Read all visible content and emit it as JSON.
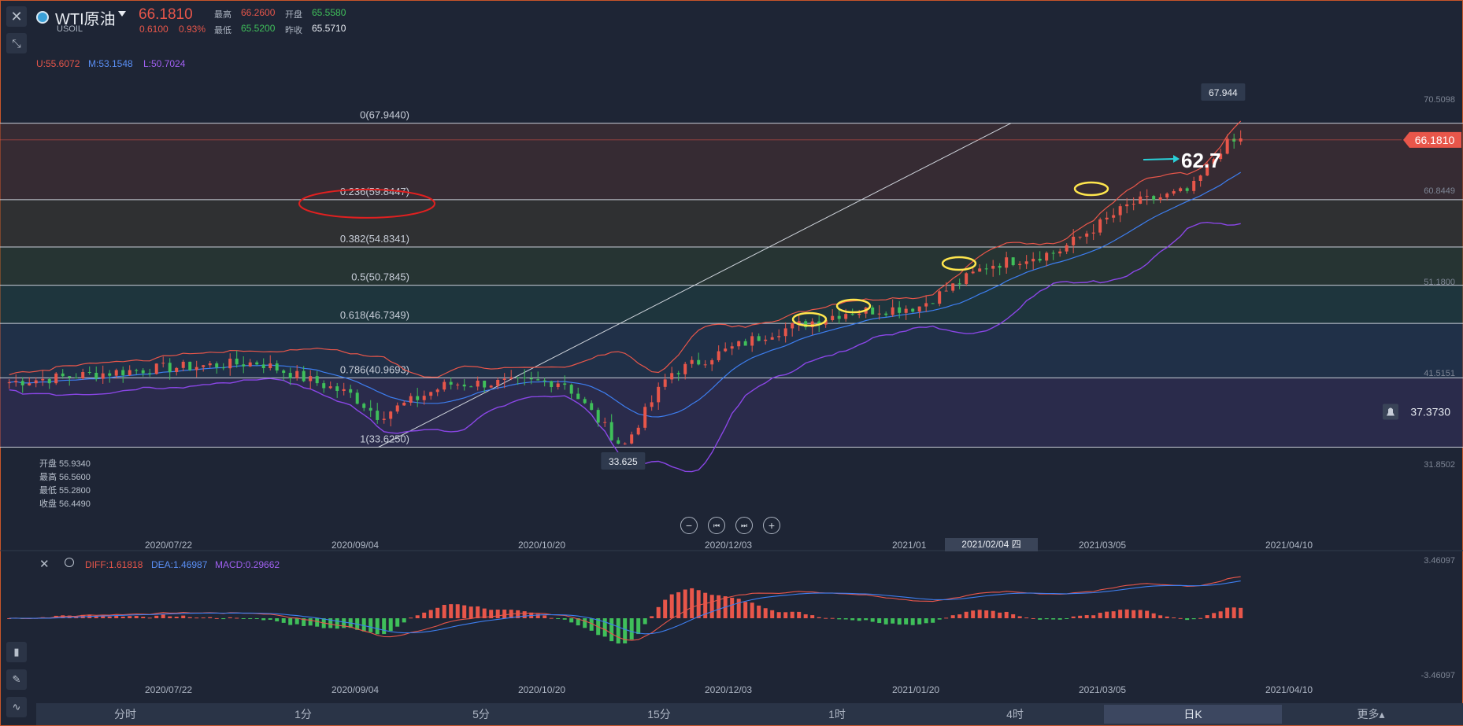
{
  "header": {
    "title": "WTI原油",
    "symbol": "USOIL",
    "price": "66.1810",
    "change": "0.6100",
    "change_pct": "0.93%",
    "quote": {
      "high_label": "最高",
      "high": "66.2600",
      "open_label": "开盘",
      "open": "65.5580",
      "low_label": "最低",
      "low": "65.5200",
      "prev_label": "昨收",
      "prev": "65.5710"
    }
  },
  "indicator": {
    "upper": "U:55.6072",
    "middle": "M:53.1548",
    "lower": "L:50.7024"
  },
  "macd_legend": {
    "diff": "DIFF:1.61818",
    "dea": "DEA:1.46987",
    "macd": "MACD:0.29662"
  },
  "fib_levels": [
    {
      "label": "0(67.9440)",
      "price": 67.944
    },
    {
      "label": "0.236(59.8447)",
      "price": 59.8447
    },
    {
      "label": "0.382(54.8341)",
      "price": 54.8341
    },
    {
      "label": "0.5(50.7845)",
      "price": 50.7845
    },
    {
      "label": "0.618(46.7349)",
      "price": 46.7349
    },
    {
      "label": "0.786(40.9693)",
      "price": 40.9693
    },
    {
      "label": "1(33.6250)",
      "price": 33.625
    }
  ],
  "price_axis": [
    "70.5098",
    "60.8449",
    "51.1800",
    "41.5151",
    "31.8502"
  ],
  "macd_axis": [
    "3.46097",
    "-3.46097"
  ],
  "last_price_tag": "66.1810",
  "alert_price": "37.3730",
  "high_marker": "67.944",
  "low_marker": "33.625",
  "annotation_target": "62.7",
  "ohlc_box": {
    "open": "开盘 55.9340",
    "high": "最高 56.5600",
    "low": "最低 55.2800",
    "close": "收盘 56.4490"
  },
  "date_axis": [
    "2020/07/22",
    "2020/09/04",
    "2020/10/20",
    "2020/12/03",
    "2021/01/20",
    "2021/03/05",
    "2021/04/10"
  ],
  "date_axis_top_mid": "2021/01",
  "crosshair_date": "2021/02/04 四",
  "timeframe_tabs": [
    "分时",
    "1分",
    "5分",
    "15分",
    "1时",
    "4时",
    "日K",
    "更多▴"
  ],
  "active_tab": "日K",
  "colors": {
    "up": "#e8564a",
    "down": "#3fbf5a",
    "middle_band": "#3d7ef0",
    "lower_band": "#8a46e6",
    "upper_band": "#e8564a",
    "annotation": "#ffe64d",
    "circle": "#e02020"
  },
  "chart_data": {
    "type": "candlestick",
    "title": "",
    "price_range": [
      28.5,
      73.5
    ],
    "x": [
      "2020/07/22",
      "2020/09/04",
      "2020/10/20",
      "2020/12/03",
      "2021/01/20",
      "2021/03/05",
      "2021/04/10"
    ],
    "close_series": [
      {
        "date": "2020/06/22",
        "close": 40.5
      },
      {
        "date": "2020/07/22",
        "close": 41.9
      },
      {
        "date": "2020/08/15",
        "close": 42.6
      },
      {
        "date": "2020/09/04",
        "close": 39.2
      },
      {
        "date": "2020/09/10",
        "close": 36.9
      },
      {
        "date": "2020/09/25",
        "close": 40.3
      },
      {
        "date": "2020/10/20",
        "close": 40.6
      },
      {
        "date": "2020/11/02",
        "close": 33.6
      },
      {
        "date": "2020/11/12",
        "close": 41.4
      },
      {
        "date": "2020/12/03",
        "close": 45.6
      },
      {
        "date": "2020/12/20",
        "close": 47.9
      },
      {
        "date": "2021/01/05",
        "close": 48.5
      },
      {
        "date": "2021/01/20",
        "close": 52.9
      },
      {
        "date": "2021/02/04",
        "close": 54.3
      },
      {
        "date": "2021/02/20",
        "close": 59.4
      },
      {
        "date": "2021/03/05",
        "close": 60.8
      },
      {
        "date": "2021/03/12",
        "close": 65.6
      },
      {
        "date": "2021/03/16",
        "close": 66.18
      }
    ],
    "bollinger": {
      "upper": 55.6072,
      "middle": 53.1548,
      "lower": 50.7024
    },
    "macd": {
      "diff": 1.61818,
      "dea": 1.46987,
      "macd": 0.29662,
      "range": [
        -3.46097,
        3.46097
      ]
    }
  }
}
